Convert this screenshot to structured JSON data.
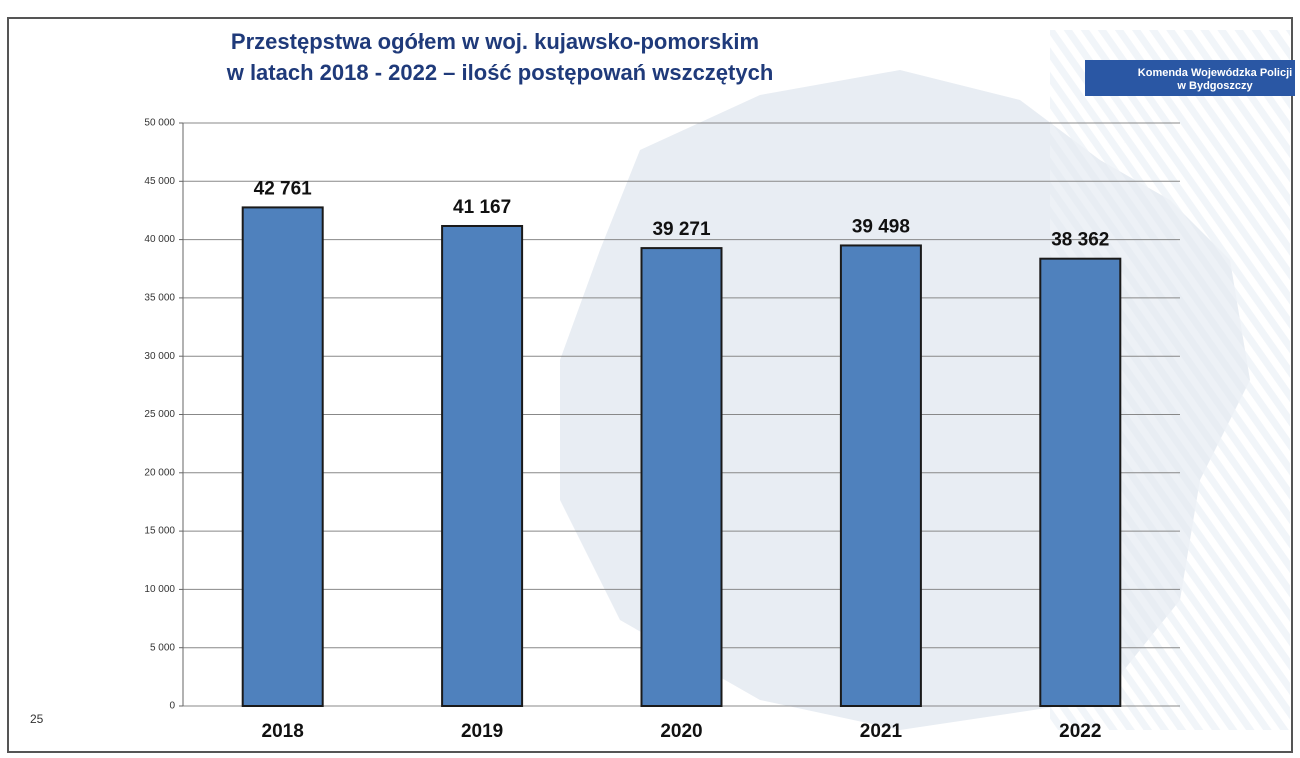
{
  "page_number": "25",
  "badge": [
    "Komenda Wojewódzka Policji",
    "w Bydgoszczy"
  ],
  "chart_data": {
    "type": "bar",
    "title": "Przestępstwa ogółem w woj. kujawsko-pomorskim",
    "subtitle": "w latach 2018 - 2022 – ilość postępowań wszczętych",
    "categories": [
      "2018",
      "2019",
      "2020",
      "2021",
      "2022"
    ],
    "values": [
      42761,
      41167,
      39271,
      39498,
      38362
    ],
    "value_labels": [
      "42 761",
      "41 167",
      "39 271",
      "39 498",
      "38 362"
    ],
    "color": "#4f81bd",
    "ylim": [
      0,
      50000
    ],
    "yticks": [
      0,
      {
        "value": 5000,
        "label": "5 000"
      },
      {
        "value": 10000,
        "label": "10 000"
      },
      {
        "value": 15000,
        "label": "15 000"
      },
      {
        "value": 20000,
        "label": "20 000"
      },
      {
        "value": 25000,
        "label": "25 000"
      },
      {
        "value": 30000,
        "label": "30 000"
      },
      {
        "value": 35000,
        "label": "35 000"
      },
      {
        "value": 40000,
        "label": "40 000"
      },
      {
        "value": 45000,
        "label": "45 000"
      },
      {
        "value": 50000,
        "label": "50 000"
      }
    ],
    "grid": true
  }
}
